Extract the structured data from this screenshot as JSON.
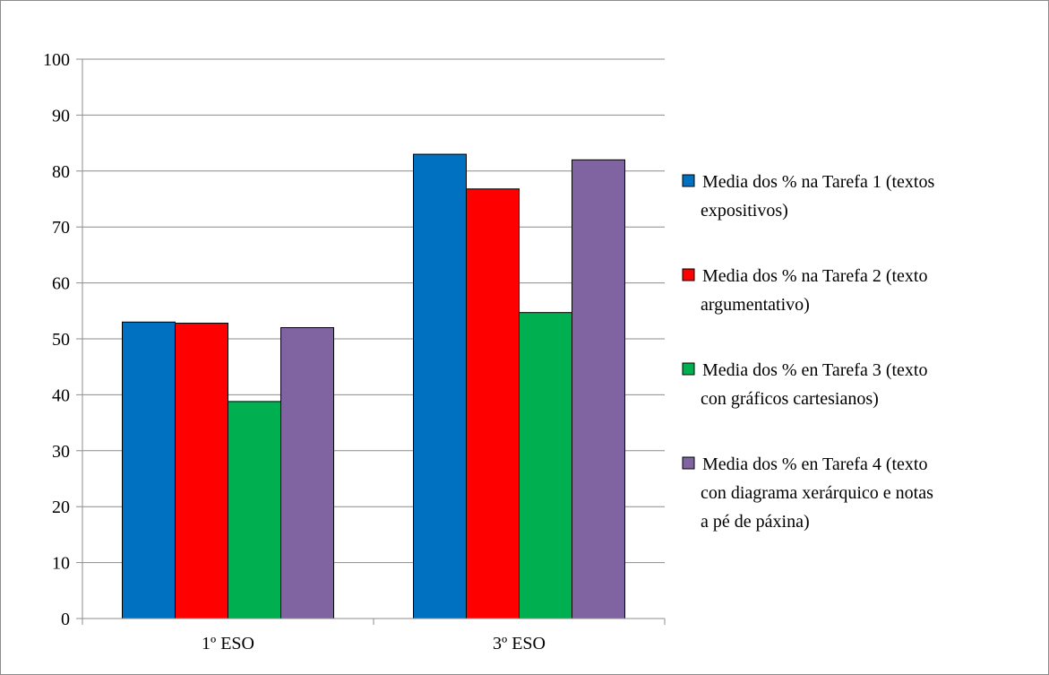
{
  "chart_data": {
    "type": "bar",
    "title": "",
    "xlabel": "",
    "ylabel": "",
    "categories": [
      "1º ESO",
      "3º ESO"
    ],
    "ylim": [
      0,
      100
    ],
    "yticks": [
      0,
      10,
      20,
      30,
      40,
      50,
      60,
      70,
      80,
      90,
      100
    ],
    "grid": true,
    "legend_position": "right",
    "series": [
      {
        "name": "Media dos % na Tarefa 1 (textos expositivos)",
        "legend_lines": [
          "Media dos % na Tarefa 1 (textos",
          "expositivos)"
        ],
        "color": "#0070C0",
        "values": [
          53,
          83
        ]
      },
      {
        "name": "Media dos % na Tarefa 2 (texto argumentativo)",
        "legend_lines": [
          "Media dos % na Tarefa 2 (texto",
          "argumentativo)"
        ],
        "color": "#FF0000",
        "values": [
          52.8,
          76.8
        ]
      },
      {
        "name": "Media dos % en Tarefa 3 (texto con gráficos cartesianos)",
        "legend_lines": [
          "Media dos % en Tarefa 3 (texto",
          "con gráficos cartesianos)"
        ],
        "color": "#00B050",
        "values": [
          38.8,
          54.7
        ]
      },
      {
        "name": "Media dos % en Tarefa 4 (texto con diagrama xerárquico e notas a pé de páxina)",
        "legend_lines": [
          "Media dos % en Tarefa 4 (texto",
          "con diagrama xerárquico e notas",
          "a pé de páxina)"
        ],
        "color": "#8064A2",
        "values": [
          52,
          82
        ]
      }
    ]
  }
}
